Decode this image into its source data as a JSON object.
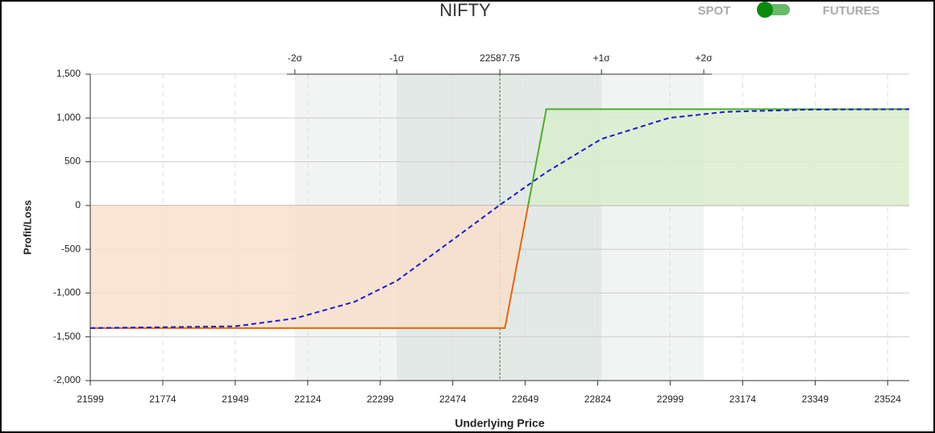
{
  "header": {
    "spot_label": "SPOT",
    "futures_label": "FUTURES"
  },
  "chart_data": {
    "type": "payoff",
    "title": "NIFTY",
    "x_label": "Underlying Price",
    "y_label": "Profit/Loss",
    "xlim": [
      21599,
      23576
    ],
    "ylim": [
      -2000,
      1500
    ],
    "xticks": [
      21599,
      21774,
      21949,
      22124,
      22299,
      22474,
      22649,
      22824,
      22999,
      23174,
      23349,
      23524
    ],
    "yticks": [
      {
        "value": -2000,
        "label": "-2,000"
      },
      {
        "value": -1500,
        "label": "-1,500"
      },
      {
        "value": -1000,
        "label": "-1,000"
      },
      -500,
      0,
      500,
      {
        "value": 1000,
        "label": "1,000"
      },
      {
        "value": 1500,
        "label": "1,500"
      }
    ],
    "top_ticks": [
      {
        "value": 22093,
        "label": "-2σ"
      },
      {
        "value": 22339,
        "label": "-1σ"
      },
      22587.75,
      {
        "value": 22833,
        "label": "+1σ"
      },
      {
        "value": 23080,
        "label": "+2σ"
      }
    ],
    "grid": true,
    "colors": {
      "loss": "#e8650a",
      "profit": "#4caf26",
      "loss_fill": "#f9dfcb",
      "profit_fill": "#d9edcc",
      "band_1sigma": "#e3e9e6",
      "band_2sigma": "#f2f4f3",
      "spot_line": "#2e8b2e"
    },
    "series": [
      {
        "style": "expiry",
        "x": [
          21599,
          22600,
          22700,
          23576
        ],
        "values": [
          -1400,
          -1400,
          1100,
          1100
        ]
      },
      {
        "style": "dashed",
        "color": "#1a1ad6",
        "x": [
          21599,
          21949,
          22093,
          22237,
          22339,
          22463,
          22586,
          22700,
          22833,
          22996,
          23133,
          23327,
          23576
        ],
        "values": [
          -1400,
          -1380,
          -1290,
          -1100,
          -860,
          -430,
          0,
          380,
          760,
          1000,
          1070,
          1095,
          1100
        ]
      }
    ]
  }
}
